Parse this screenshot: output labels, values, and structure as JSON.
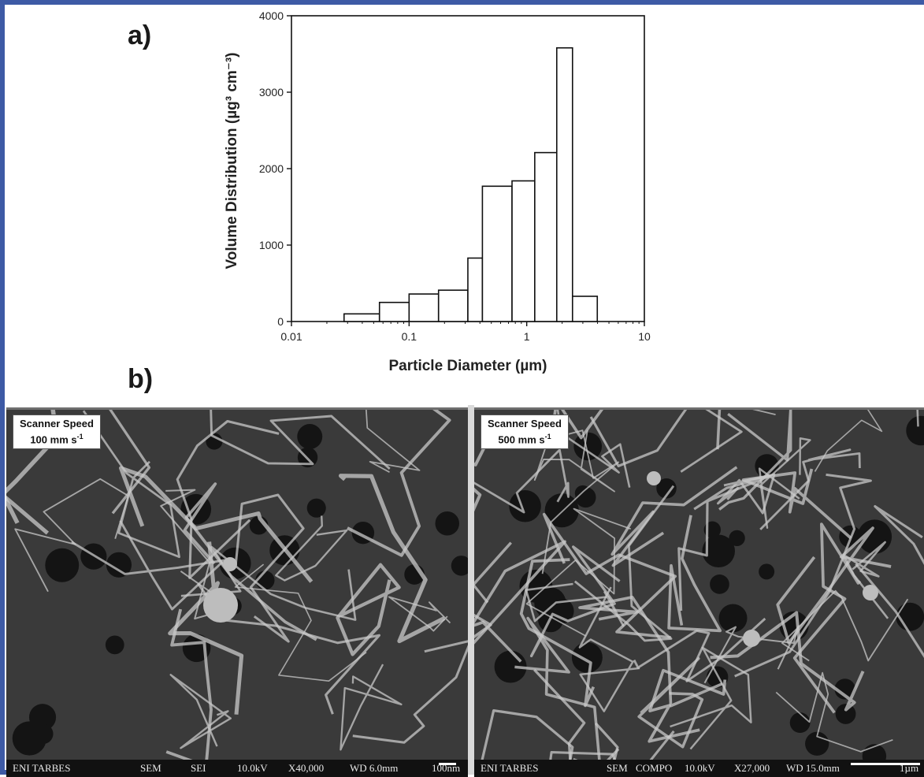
{
  "panels": {
    "a_label": "a)",
    "b_label": "b)"
  },
  "chart_data": {
    "type": "bar",
    "xscale": "log",
    "xlabel": "Particle Diameter (µm)",
    "ylabel": "Volume Distribution (µg³ cm⁻³)",
    "xlim": [
      0.01,
      10
    ],
    "ylim": [
      0,
      4000
    ],
    "x_ticks": [
      "0.01",
      "0.1",
      "1",
      "10"
    ],
    "y_ticks": [
      "0",
      "1000",
      "2000",
      "3000",
      "4000"
    ],
    "bins": [
      {
        "x0": 0.028,
        "x1": 0.056,
        "value": 100
      },
      {
        "x0": 0.056,
        "x1": 0.1,
        "value": 250
      },
      {
        "x0": 0.1,
        "x1": 0.178,
        "value": 360
      },
      {
        "x0": 0.178,
        "x1": 0.316,
        "value": 410
      },
      {
        "x0": 0.316,
        "x1": 0.42,
        "value": 830
      },
      {
        "x0": 0.42,
        "x1": 0.75,
        "value": 1770
      },
      {
        "x0": 0.75,
        "x1": 1.17,
        "value": 1840
      },
      {
        "x0": 1.17,
        "x1": 1.8,
        "value": 2210
      },
      {
        "x0": 1.8,
        "x1": 2.45,
        "value": 3580
      },
      {
        "x0": 2.45,
        "x1": 3.98,
        "value": 330
      }
    ]
  },
  "micrographs": [
    {
      "speed_title": "Scanner Speed",
      "speed_value": "100 mm s",
      "speed_exp": "-1",
      "bar": [
        "ENI TARBES",
        "SEM",
        "SEI",
        "10.0kV",
        "X40,000",
        "WD 6.0mm",
        "100nm"
      ]
    },
    {
      "speed_title": "Scanner Speed",
      "speed_value": "500 mm s",
      "speed_exp": "-1",
      "bar": [
        "ENI TARBES",
        "SEM",
        "COMPO",
        "10.0kV",
        "X27,000",
        "WD 15.0mm",
        "1µm"
      ]
    }
  ],
  "colors": {
    "frame": "#3d5aa5",
    "bar_fill": "#ffffff",
    "bar_stroke": "#111111"
  }
}
